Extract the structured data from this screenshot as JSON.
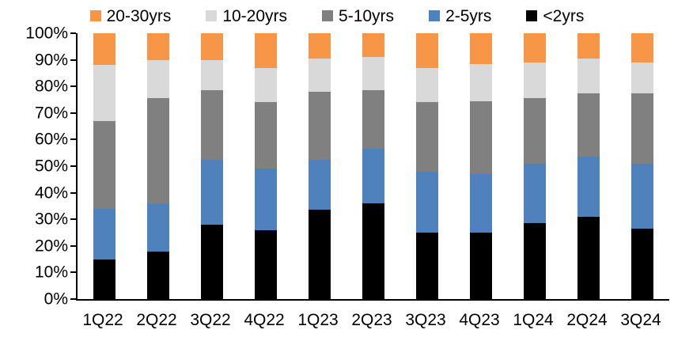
{
  "chart_data": {
    "type": "bar",
    "stacked": true,
    "percent_stacked": true,
    "title": "",
    "xlabel": "",
    "ylabel": "",
    "ylim": [
      0,
      100
    ],
    "grid": false,
    "legend_position": "top",
    "y_ticks_top_to_bottom": [
      "100%",
      "90%",
      "80%",
      "70%",
      "60%",
      "50%",
      "40%",
      "30%",
      "20%",
      "10%",
      "0%"
    ],
    "categories": [
      "1Q22",
      "2Q22",
      "3Q22",
      "4Q22",
      "1Q23",
      "2Q23",
      "3Q23",
      "4Q23",
      "1Q24",
      "2Q24",
      "3Q24"
    ],
    "series_legend_order": [
      {
        "name": "20-30yrs",
        "color": "#F79646",
        "values": [
          12,
          10,
          10,
          13,
          9.5,
          9,
          13,
          11.5,
          11,
          9.5,
          11
        ]
      },
      {
        "name": "10-20yrs",
        "color": "#D9D9D9",
        "values": [
          21,
          14.5,
          11.5,
          13,
          12.5,
          12.5,
          13,
          14,
          13.5,
          13,
          11.5
        ]
      },
      {
        "name": "5-10yrs",
        "color": "#808080",
        "values": [
          33,
          39.5,
          26,
          25,
          25.5,
          22,
          26,
          27.5,
          24.5,
          24,
          26.5
        ]
      },
      {
        "name": "2-5yrs",
        "color": "#4F81BD",
        "values": [
          19,
          18,
          24.5,
          23,
          19,
          20.5,
          23,
          22,
          22.5,
          22.5,
          24.5
        ]
      },
      {
        "name": "<2yrs",
        "color": "#000000",
        "values": [
          15,
          18,
          28,
          26,
          33.5,
          36,
          25,
          25,
          28.5,
          31,
          26.5
        ]
      }
    ],
    "stack_order_bottom_to_top": [
      "<2yrs",
      "2-5yrs",
      "5-10yrs",
      "10-20yrs",
      "20-30yrs"
    ],
    "axis_color": "#000000",
    "background_color": "#FFFFFF"
  }
}
